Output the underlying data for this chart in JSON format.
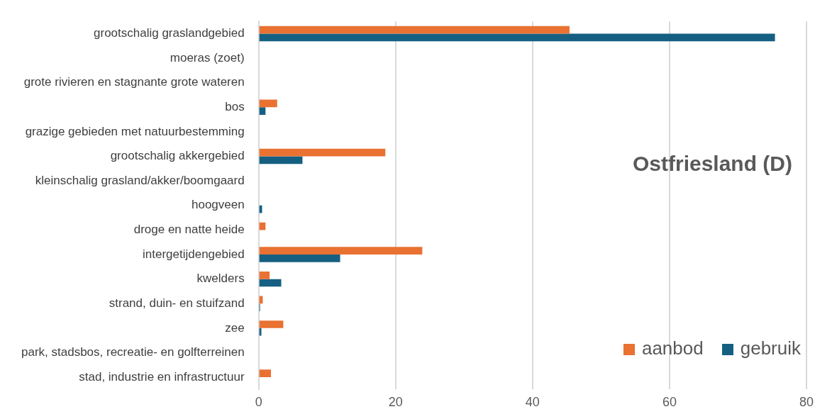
{
  "chart_data": {
    "type": "bar",
    "orientation": "horizontal",
    "title": "Ostfriesland (D)",
    "categories": [
      "grootschalig graslandgebied",
      "moeras (zoet)",
      "grote rivieren en stagnante grote wateren",
      "bos",
      "grazige gebieden met natuurbestemming",
      "grootschalig akkergebied",
      "kleinschalig grasland/akker/boomgaard",
      "hoogveen",
      "droge en natte heide",
      "intergetijdengebied",
      "kwelders",
      "strand, duin- en stuifzand",
      "zee",
      "park, stadsbos, recreatie- en golfterreinen",
      "stad, industrie en infrastructuur"
    ],
    "series": [
      {
        "name": "aanbod",
        "color": "#e97132",
        "values": [
          45.4,
          0,
          0,
          2.7,
          0,
          18.5,
          0,
          0,
          1.0,
          23.9,
          1.6,
          0.6,
          3.6,
          0,
          1.8
        ]
      },
      {
        "name": "gebruik",
        "color": "#156082",
        "values": [
          75.4,
          0,
          0,
          1.0,
          0,
          6.4,
          0,
          0.5,
          0,
          11.9,
          3.3,
          0.2,
          0.4,
          0,
          0
        ]
      }
    ],
    "xlim": [
      0,
      80
    ],
    "xticks": [
      0,
      20,
      40,
      60,
      80
    ],
    "grid": "x",
    "legend": "bottom right"
  }
}
